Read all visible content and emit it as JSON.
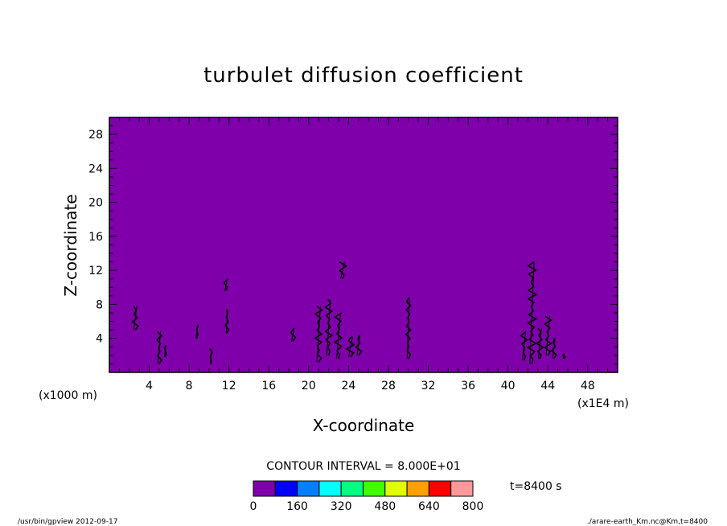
{
  "chart_data": {
    "type": "heatmap",
    "title": "turbulet diffusion coefficient",
    "xlabel": "X-coordinate",
    "ylabel": "Z-coordinate",
    "x_unit_left": "(x1000 m)",
    "x_unit_right": "(x1E4 m)",
    "xlim": [
      0,
      51
    ],
    "ylim": [
      0,
      30
    ],
    "x_ticks": [
      4,
      8,
      12,
      16,
      20,
      24,
      28,
      32,
      36,
      40,
      44,
      48
    ],
    "y_ticks": [
      4,
      8,
      12,
      16,
      20,
      24,
      28
    ],
    "background_color": "#7f00aa",
    "contour_interval_label": "CONTOUR INTERVAL = 8.000E+01",
    "time_label": "t=8400 s",
    "colorbar": {
      "colors": [
        "#7f00aa",
        "#0000ff",
        "#0080ff",
        "#00ffff",
        "#00ff80",
        "#40ff00",
        "#e0ff00",
        "#ffa000",
        "#ff0000",
        "#ff9999"
      ],
      "ticks": [
        0,
        160,
        320,
        480,
        640,
        800
      ]
    },
    "features": [
      {
        "x": 2.6,
        "z0": 5.0,
        "z1": 7.8,
        "w": 0.45
      },
      {
        "x": 5.0,
        "z0": 1.0,
        "z1": 4.8,
        "w": 0.35
      },
      {
        "x": 5.6,
        "z0": 1.8,
        "z1": 3.2,
        "w": 0.2
      },
      {
        "x": 8.8,
        "z0": 4.0,
        "z1": 5.6,
        "w": 0.35
      },
      {
        "x": 10.2,
        "z0": 1.0,
        "z1": 2.8,
        "w": 0.2
      },
      {
        "x": 11.7,
        "z0": 9.6,
        "z1": 11.0,
        "w": 0.3
      },
      {
        "x": 11.8,
        "z0": 4.6,
        "z1": 7.4,
        "w": 0.2
      },
      {
        "x": 18.4,
        "z0": 3.6,
        "z1": 5.2,
        "w": 0.35
      },
      {
        "x": 21.0,
        "z0": 1.2,
        "z1": 7.8,
        "w": 0.55
      },
      {
        "x": 22.0,
        "z0": 2.0,
        "z1": 8.6,
        "w": 0.55
      },
      {
        "x": 23.0,
        "z0": 1.6,
        "z1": 7.0,
        "w": 0.6
      },
      {
        "x": 23.4,
        "z0": 11.0,
        "z1": 13.0,
        "w": 0.6
      },
      {
        "x": 24.2,
        "z0": 1.8,
        "z1": 4.2,
        "w": 0.65
      },
      {
        "x": 25.0,
        "z0": 2.0,
        "z1": 4.4,
        "w": 0.45
      },
      {
        "x": 30.0,
        "z0": 1.6,
        "z1": 8.8,
        "w": 0.35
      },
      {
        "x": 41.6,
        "z0": 1.4,
        "z1": 4.8,
        "w": 0.5
      },
      {
        "x": 42.4,
        "z0": 1.0,
        "z1": 13.0,
        "w": 0.7
      },
      {
        "x": 43.2,
        "z0": 1.6,
        "z1": 5.2,
        "w": 0.5
      },
      {
        "x": 44.0,
        "z0": 2.0,
        "z1": 6.6,
        "w": 0.55
      },
      {
        "x": 44.6,
        "z0": 1.6,
        "z1": 4.0,
        "w": 0.35
      },
      {
        "x": 45.6,
        "z0": 1.6,
        "z1": 2.2,
        "w": 0.15
      }
    ]
  },
  "footer": {
    "left": "/usr/bin/gpview  2012-09-17",
    "right": "./arare-earth_Km.nc@Km,t=8400"
  }
}
